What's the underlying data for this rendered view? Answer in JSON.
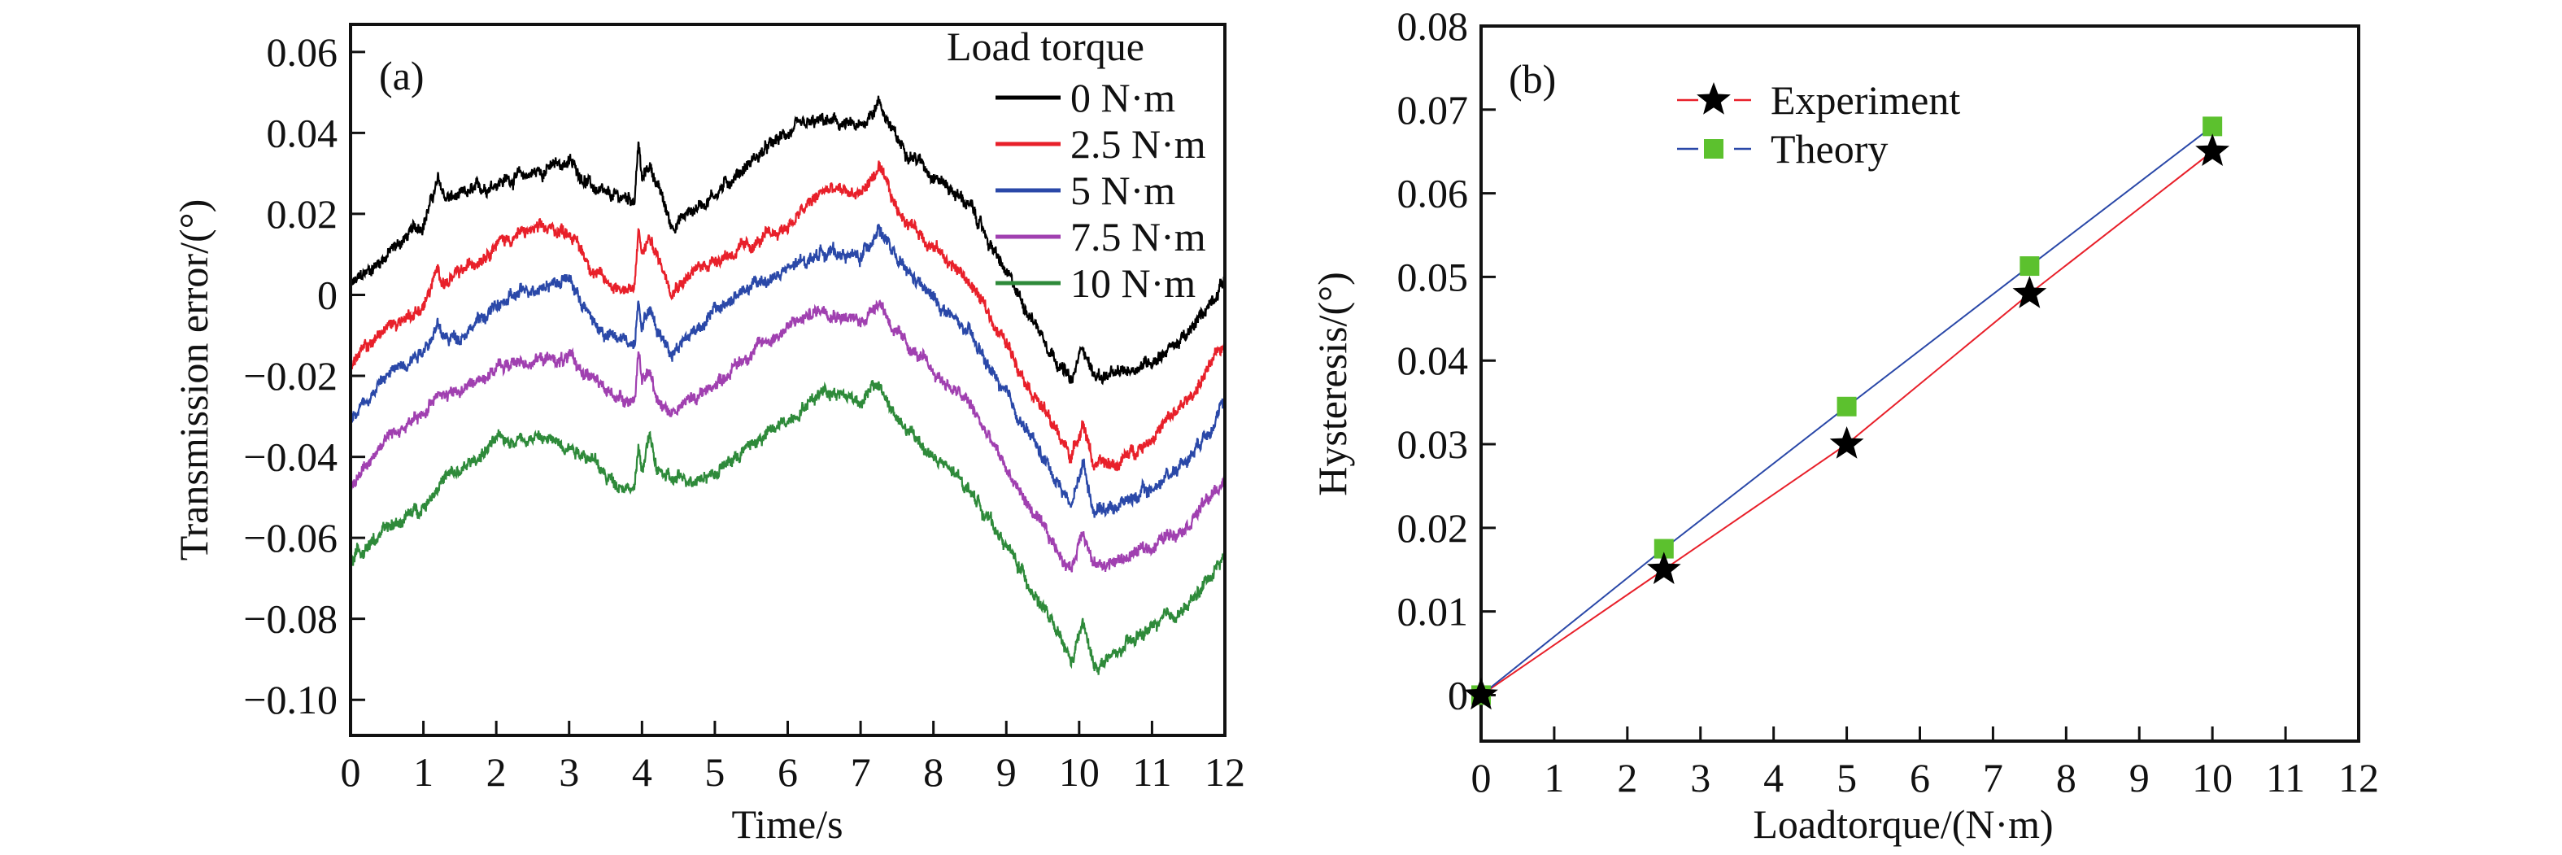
{
  "chart_data": [
    {
      "type": "line",
      "panel_label": "(a)",
      "title": "",
      "xlabel": "Time/s",
      "ylabel": "Transmission error/(°)",
      "xlim": [
        0,
        12
      ],
      "ylim": [
        -0.1088,
        0.0668
      ],
      "xticks": [
        "0",
        "1",
        "2",
        "3",
        "4",
        "5",
        "6",
        "7",
        "8",
        "9",
        "10",
        "11",
        "12"
      ],
      "yticks": [
        {
          "v": 0.06,
          "label": "0.06"
        },
        {
          "v": 0.04,
          "label": "0.04"
        },
        {
          "v": 0.02,
          "label": "0.02"
        },
        {
          "v": 0,
          "label": "0"
        },
        {
          "v": -0.02,
          "label": "−0.02"
        },
        {
          "v": -0.04,
          "label": "−0.04"
        },
        {
          "v": -0.06,
          "label": "−0.06"
        },
        {
          "v": -0.08,
          "label": "−0.08"
        },
        {
          "v": -0.1,
          "label": "−0.10"
        }
      ],
      "legend_title": "Load torque",
      "legend_position": "top-right",
      "grid": false,
      "x": [
        0,
        0.5,
        1,
        1.2,
        1.3,
        1.5,
        2,
        2.5,
        3,
        3.3,
        3.5,
        3.9,
        3.95,
        4.0,
        4.1,
        4.2,
        4.4,
        5,
        5.5,
        6,
        6.5,
        7,
        7.25,
        7.5,
        8,
        8.5,
        9,
        9.5,
        9.9,
        10.05,
        10.2,
        10.5,
        11,
        11.5,
        12
      ],
      "series": [
        {
          "name": "0 N·m",
          "color": "#000000",
          "values": [
            0.002,
            0.01,
            0.018,
            0.028,
            0.024,
            0.024,
            0.028,
            0.03,
            0.033,
            0.027,
            0.024,
            0.024,
            0.038,
            0.028,
            0.032,
            0.028,
            0.017,
            0.025,
            0.033,
            0.04,
            0.043,
            0.041,
            0.048,
            0.038,
            0.03,
            0.022,
            0.005,
            -0.01,
            -0.022,
            -0.012,
            -0.02,
            -0.02,
            -0.016,
            -0.01,
            0.004
          ]
        },
        {
          "name": "2.5 N·m",
          "color": "#e8202a",
          "values": [
            -0.017,
            -0.008,
            -0.003,
            0.006,
            0.003,
            0.005,
            0.013,
            0.016,
            0.016,
            0.007,
            0.003,
            0.001,
            0.016,
            0.01,
            0.014,
            0.01,
            0.002,
            0.009,
            0.012,
            0.017,
            0.026,
            0.025,
            0.031,
            0.021,
            0.012,
            0.003,
            -0.012,
            -0.028,
            -0.04,
            -0.031,
            -0.042,
            -0.042,
            -0.035,
            -0.026,
            -0.012
          ]
        },
        {
          "name": "5 N·m",
          "color": "#2a48a8",
          "values": [
            -0.03,
            -0.02,
            -0.013,
            -0.008,
            -0.011,
            -0.01,
            -0.003,
            0.002,
            0.004,
            -0.006,
            -0.01,
            -0.012,
            0.0,
            -0.007,
            -0.003,
            -0.008,
            -0.014,
            -0.004,
            0.002,
            0.006,
            0.011,
            0.009,
            0.017,
            0.008,
            -0.001,
            -0.01,
            -0.025,
            -0.04,
            -0.052,
            -0.041,
            -0.053,
            -0.052,
            -0.048,
            -0.04,
            -0.027
          ]
        },
        {
          "name": "7.5 N·m",
          "color": "#a040b0",
          "values": [
            -0.047,
            -0.035,
            -0.03,
            -0.023,
            -0.025,
            -0.024,
            -0.018,
            -0.016,
            -0.016,
            -0.02,
            -0.024,
            -0.026,
            -0.014,
            -0.022,
            -0.019,
            -0.025,
            -0.029,
            -0.022,
            -0.014,
            -0.008,
            -0.003,
            -0.007,
            -0.001,
            -0.01,
            -0.019,
            -0.027,
            -0.043,
            -0.058,
            -0.068,
            -0.057,
            -0.067,
            -0.066,
            -0.062,
            -0.056,
            -0.046
          ]
        },
        {
          "name": "10 N·m",
          "color": "#2e8a3a",
          "values": [
            -0.065,
            -0.058,
            -0.052,
            -0.047,
            -0.045,
            -0.044,
            -0.036,
            -0.035,
            -0.037,
            -0.04,
            -0.045,
            -0.048,
            -0.038,
            -0.043,
            -0.035,
            -0.043,
            -0.046,
            -0.044,
            -0.037,
            -0.031,
            -0.023,
            -0.026,
            -0.022,
            -0.031,
            -0.04,
            -0.048,
            -0.062,
            -0.077,
            -0.091,
            -0.081,
            -0.092,
            -0.089,
            -0.082,
            -0.077,
            -0.064
          ]
        }
      ]
    },
    {
      "type": "line",
      "panel_label": "(b)",
      "title": "",
      "xlabel": "Loadtorque/(N·m)",
      "ylabel": "Hysteresis/(°)",
      "xlim": [
        0,
        12
      ],
      "ylim": [
        -0.0055,
        0.08
      ],
      "xticks": [
        "0",
        "1",
        "2",
        "3",
        "4",
        "5",
        "6",
        "7",
        "8",
        "9",
        "10",
        "11",
        "12"
      ],
      "yticks": [
        {
          "v": 0.08,
          "label": "0.08"
        },
        {
          "v": 0.07,
          "label": "0.07"
        },
        {
          "v": 0.06,
          "label": "0.06"
        },
        {
          "v": 0.05,
          "label": "0.05"
        },
        {
          "v": 0.04,
          "label": "0.04"
        },
        {
          "v": 0.03,
          "label": "0.03"
        },
        {
          "v": 0.02,
          "label": "0.02"
        },
        {
          "v": 0.01,
          "label": "0.01"
        },
        {
          "v": 0,
          "label": "0"
        }
      ],
      "legend_position": "top-left",
      "grid": false,
      "x": [
        0,
        2.5,
        5,
        7.5,
        10
      ],
      "series": [
        {
          "name": "Experiment",
          "color": "#e8202a",
          "marker": "star",
          "marker_color": "#000000",
          "values": [
            0,
            0.015,
            0.03,
            0.048,
            0.065
          ]
        },
        {
          "name": "Theory",
          "color": "#2a48a8",
          "marker": "square",
          "marker_color": "#5cc12e",
          "values": [
            0,
            0.0175,
            0.0345,
            0.0513,
            0.068
          ]
        }
      ]
    }
  ]
}
